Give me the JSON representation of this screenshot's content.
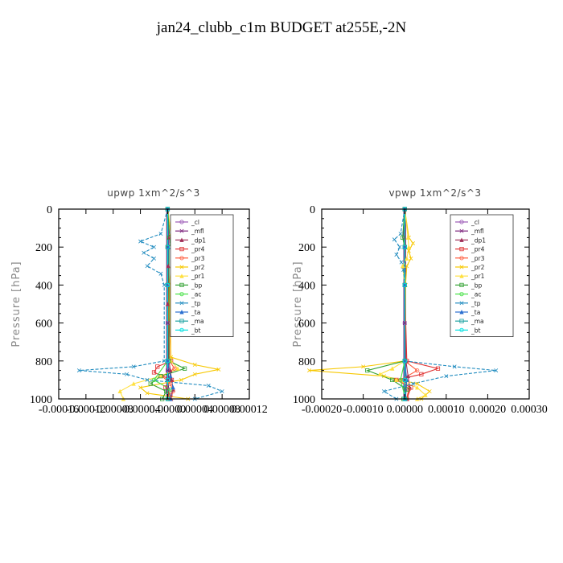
{
  "figure_title": "jan24_clubb_c1m  BUDGET at255E,-2N",
  "chart_data": [
    {
      "type": "line",
      "title": "upwp   1xm^2/s^3",
      "ylabel": "Pressure [hPa]",
      "xlabel": "",
      "ylim": [
        1000,
        0
      ],
      "xlim": [
        -0.00016,
        0.00012
      ],
      "y_ticks": [
        "0",
        "200",
        "400",
        "600",
        "800",
        "1000"
      ],
      "y_tick_values": [
        0,
        200,
        400,
        600,
        800,
        1000
      ],
      "x_ticks": [
        "-0.00016",
        "-0.00012",
        "-0.00008",
        "-0.00004",
        "0.00000",
        "0.00004",
        "0.00008",
        "0.00012"
      ],
      "x_tick_values": [
        -0.00016,
        -0.00012,
        -8e-05,
        -4e-05,
        0,
        4e-05,
        8e-05,
        0.00012
      ],
      "legend": [
        "_cl",
        "_mfl",
        "_dp1",
        "_pr4",
        "_pr3",
        "_pr2",
        "_pr1",
        "_bp",
        "_ac",
        "_tp",
        "_ta",
        "_ma",
        "_bt"
      ],
      "legend_position": "top-right",
      "series": [
        {
          "name": "_cl",
          "color": "#9b59b6",
          "pressure": [
            0,
            200,
            400,
            600,
            800,
            850,
            900,
            950,
            1000
          ],
          "values": [
            0,
            0,
            0,
            0,
            0,
            0,
            0,
            0,
            0
          ]
        },
        {
          "name": "_mfl",
          "color": "#7a1f7a",
          "pressure": [
            0,
            200,
            400,
            600,
            800,
            850,
            900,
            950,
            1000
          ],
          "values": [
            0,
            0,
            0,
            0,
            0,
            0,
            0,
            0,
            0
          ]
        },
        {
          "name": "_dp1",
          "color": "#a0305a",
          "pressure": [
            0,
            150,
            300,
            500,
            800,
            850,
            900,
            950,
            1000
          ],
          "values": [
            0,
            2e-06,
            1e-06,
            0,
            2e-06,
            4e-06,
            6e-06,
            8e-06,
            5e-06
          ]
        },
        {
          "name": "_pr4",
          "color": "#e03030",
          "pressure": [
            0,
            200,
            400,
            800,
            830,
            860,
            900,
            940,
            980,
            1000
          ],
          "values": [
            0,
            0,
            0,
            5e-06,
            -1.5e-05,
            -2e-05,
            6e-06,
            -3e-06,
            4e-06,
            2e-06
          ]
        },
        {
          "name": "_pr3",
          "color": "#ff5a3c",
          "pressure": [
            0,
            200,
            400,
            800,
            840,
            880,
            920,
            960,
            1000
          ],
          "values": [
            0,
            0,
            0,
            3e-06,
            1e-05,
            -8e-06,
            4e-06,
            8e-06,
            3e-06
          ]
        },
        {
          "name": "_pr2",
          "color": "#f7c800",
          "pressure": [
            0,
            140,
            180,
            220,
            260,
            300,
            400,
            780,
            820,
            845,
            870,
            900,
            940,
            970,
            1000
          ],
          "values": [
            0,
            5e-06,
            1.8e-05,
            1.5e-05,
            2e-05,
            1e-05,
            3e-06,
            5e-06,
            4e-05,
            7.5e-05,
            4e-05,
            2e-05,
            -4e-05,
            -3e-05,
            3e-05
          ]
        },
        {
          "name": "_pr1",
          "color": "#ffe040",
          "pressure": [
            0,
            150,
            200,
            300,
            400,
            800,
            840,
            880,
            920,
            960,
            1000
          ],
          "values": [
            0,
            6e-06,
            1e-05,
            6e-06,
            2e-06,
            5e-06,
            1.5e-05,
            -1e-05,
            -5e-05,
            -7e-05,
            -6.5e-05
          ]
        },
        {
          "name": "_bp",
          "color": "#30a030",
          "pressure": [
            0,
            150,
            170,
            200,
            800,
            840,
            880,
            920,
            960,
            1000
          ],
          "values": [
            0,
            3e-06,
            6e-06,
            2e-06,
            2e-06,
            2.5e-05,
            -1e-05,
            -2.5e-05,
            -2e-06,
            -8e-06
          ]
        },
        {
          "name": "_ac",
          "color": "#44e044",
          "pressure": [
            0,
            200,
            400,
            800,
            900,
            950,
            1000
          ],
          "values": [
            0,
            0,
            0,
            0,
            -2e-05,
            4e-06,
            1e-06
          ]
        },
        {
          "name": "_tp",
          "color": "#1f8bbf",
          "pressure": [
            0,
            130,
            170,
            200,
            230,
            260,
            300,
            340,
            400,
            800,
            830,
            850,
            870,
            900,
            930,
            960,
            1000
          ],
          "values": [
            0,
            -1e-05,
            -4e-05,
            -2e-05,
            -3.5e-05,
            -2e-05,
            -3e-05,
            -1e-05,
            -5e-06,
            -5e-06,
            -5e-05,
            -0.00013,
            -6e-05,
            -3e-05,
            6e-05,
            8e-05,
            4e-05
          ]
        },
        {
          "name": "_ta",
          "color": "#2a6fd0",
          "pressure": [
            0,
            200,
            400,
            800,
            880,
            940,
            1000
          ],
          "values": [
            0,
            1e-06,
            0,
            0,
            4e-06,
            8e-06,
            4e-06
          ]
        },
        {
          "name": "_ma",
          "color": "#1aa0a0",
          "pressure": [
            0,
            200,
            400,
            800,
            900,
            1000
          ],
          "values": [
            0,
            0,
            0,
            0,
            1e-06,
            0
          ]
        },
        {
          "name": "_bt",
          "color": "#00e0e0",
          "pressure": [
            0,
            200,
            400,
            800,
            900,
            1000
          ],
          "values": [
            0,
            0,
            0,
            0,
            0,
            0
          ]
        }
      ]
    },
    {
      "type": "line",
      "title": "vpwp   1xm^2/s^3",
      "ylabel": "Pressure [hPa]",
      "xlabel": "",
      "ylim": [
        1000,
        0
      ],
      "xlim": [
        -0.0002,
        0.0003
      ],
      "y_ticks": [
        "0",
        "200",
        "400",
        "600",
        "800",
        "1000"
      ],
      "y_tick_values": [
        0,
        200,
        400,
        600,
        800,
        1000
      ],
      "x_ticks": [
        "-0.00020",
        "-0.00010",
        "0.00000",
        "0.00010",
        "0.00020",
        "0.00030"
      ],
      "x_tick_values": [
        -0.0002,
        -0.0001,
        0,
        0.0001,
        0.0002,
        0.0003
      ],
      "legend": [
        "_cl",
        "_mfl",
        "_dp1",
        "_pr4",
        "_pr3",
        "_pr2",
        "_pr1",
        "_bp",
        "_ac",
        "_tp",
        "_ta",
        "_ma",
        "_bt"
      ],
      "legend_position": "top-right",
      "series": [
        {
          "name": "_cl",
          "color": "#9b59b6",
          "pressure": [
            0,
            200,
            400,
            600,
            800,
            900,
            1000
          ],
          "values": [
            0,
            0,
            0,
            0,
            0,
            0,
            0
          ]
        },
        {
          "name": "_mfl",
          "color": "#7a1f7a",
          "pressure": [
            0,
            200,
            400,
            600,
            800,
            900,
            1000
          ],
          "values": [
            0,
            0,
            0,
            0,
            0,
            0,
            0
          ]
        },
        {
          "name": "_dp1",
          "color": "#a0305a",
          "pressure": [
            0,
            200,
            400,
            800,
            880,
            940,
            1000
          ],
          "values": [
            0,
            2e-06,
            0,
            3e-06,
            8e-06,
            1.2e-05,
            6e-06
          ]
        },
        {
          "name": "_pr4",
          "color": "#e03030",
          "pressure": [
            0,
            200,
            400,
            800,
            840,
            870,
            900,
            940,
            1000
          ],
          "values": [
            0,
            0,
            0,
            5e-06,
            8e-05,
            4e-05,
            -2e-05,
            1.5e-05,
            5e-06
          ]
        },
        {
          "name": "_pr3",
          "color": "#ff5a3c",
          "pressure": [
            0,
            200,
            400,
            800,
            850,
            900,
            950,
            1000
          ],
          "values": [
            0,
            0,
            0,
            0,
            3e-05,
            -1e-05,
            1e-05,
            4e-06
          ]
        },
        {
          "name": "_pr2",
          "color": "#f7c800",
          "pressure": [
            0,
            150,
            180,
            220,
            260,
            300,
            400,
            800,
            830,
            850,
            880,
            920,
            960,
            1000
          ],
          "values": [
            0,
            1e-05,
            2e-05,
            1e-05,
            1.5e-05,
            5e-06,
            2e-06,
            0,
            -0.0001,
            -0.00023,
            -5e-05,
            3e-05,
            6e-05,
            4e-05
          ]
        },
        {
          "name": "_pr1",
          "color": "#ffe040",
          "pressure": [
            0,
            150,
            200,
            260,
            300,
            400,
            800,
            840,
            870,
            900,
            940,
            980,
            1000
          ],
          "values": [
            0,
            8e-06,
            1e-05,
            5e-06,
            -5e-06,
            0,
            0,
            -3e-05,
            -6e-05,
            -2e-05,
            3e-05,
            5e-05,
            3e-05
          ]
        },
        {
          "name": "_bp",
          "color": "#30a030",
          "pressure": [
            0,
            150,
            200,
            800,
            850,
            900,
            950,
            1000
          ],
          "values": [
            0,
            -5e-06,
            0,
            0,
            -9e-05,
            -3e-05,
            5e-06,
            -3e-06
          ]
        },
        {
          "name": "_ac",
          "color": "#44e044",
          "pressure": [
            0,
            200,
            400,
            800,
            900,
            1000
          ],
          "values": [
            0,
            0,
            0,
            0,
            -1e-05,
            2e-06
          ]
        },
        {
          "name": "_tp",
          "color": "#1f8bbf",
          "pressure": [
            0,
            130,
            160,
            200,
            240,
            280,
            320,
            400,
            800,
            830,
            850,
            880,
            920,
            960,
            1000
          ],
          "values": [
            0,
            -1e-05,
            -2.5e-05,
            -1.2e-05,
            -2e-05,
            -8e-06,
            -3e-06,
            0,
            0,
            0.00012,
            0.00022,
            0.0001,
            2e-05,
            -5e-05,
            -2e-05
          ]
        },
        {
          "name": "_ta",
          "color": "#2a6fd0",
          "pressure": [
            0,
            200,
            400,
            800,
            900,
            1000
          ],
          "values": [
            0,
            0,
            0,
            0,
            5e-06,
            2e-06
          ]
        },
        {
          "name": "_ma",
          "color": "#1aa0a0",
          "pressure": [
            0,
            200,
            400,
            800,
            900,
            1000
          ],
          "values": [
            0,
            0,
            0,
            0,
            1e-06,
            0
          ]
        },
        {
          "name": "_bt",
          "color": "#00e0e0",
          "pressure": [
            0,
            200,
            400,
            800,
            900,
            1000
          ],
          "values": [
            0,
            0,
            0,
            0,
            0,
            0
          ]
        }
      ]
    }
  ]
}
